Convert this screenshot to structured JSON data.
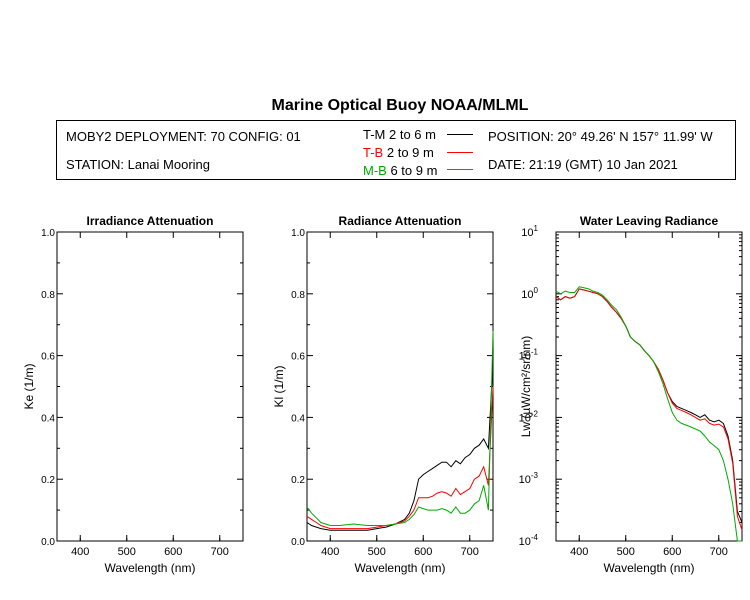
{
  "title": "Marine Optical Buoy NOAA/MLML",
  "info": {
    "deployment": "MOBY2 DEPLOYMENT: 70 CONFIG: 01",
    "station": "STATION: Lanai Mooring",
    "position": "POSITION: 20° 49.26' N   157° 11.99' W",
    "date": "DATE: 21:19 (GMT) 10 Jan 2021",
    "legend": [
      {
        "tag": "T-M",
        "depth": "2 to 6  m",
        "color": "#000000"
      },
      {
        "tag": "T-B",
        "depth": "2 to 9  m",
        "color": "#ff0000"
      },
      {
        "tag": "M-B",
        "depth": "6 to 9  m",
        "color": "#00aa00"
      }
    ]
  },
  "chart_data": [
    {
      "type": "line",
      "title": "Irradiance Attenuation",
      "xlabel": "Wavelength (nm)",
      "ylabel": "Ke  (1/m)",
      "xlim": [
        350,
        750
      ],
      "ylim": [
        0,
        1.0
      ],
      "xticks": [
        "400",
        "500",
        "600",
        "700"
      ],
      "yticks": [
        "0.0",
        "0.2",
        "0.4",
        "0.6",
        "0.8",
        "1.0"
      ],
      "series": []
    },
    {
      "type": "line",
      "title": "Radiance Attenuation",
      "xlabel": "Wavelength (nm)",
      "ylabel": "Kl  (1/m)",
      "xlim": [
        350,
        750
      ],
      "ylim": [
        0,
        1.0
      ],
      "xticks": [
        "400",
        "500",
        "600",
        "700"
      ],
      "yticks": [
        "0.0",
        "0.2",
        "0.4",
        "0.6",
        "0.8",
        "1.0"
      ],
      "series": [
        {
          "color": "#000000",
          "x": [
            350,
            360,
            370,
            380,
            400,
            420,
            450,
            480,
            500,
            520,
            540,
            560,
            570,
            580,
            590,
            600,
            610,
            620,
            630,
            640,
            650,
            660,
            670,
            680,
            690,
            700,
            710,
            720,
            730,
            740,
            750
          ],
          "y": [
            0.06,
            0.05,
            0.045,
            0.04,
            0.035,
            0.035,
            0.035,
            0.035,
            0.04,
            0.045,
            0.055,
            0.07,
            0.09,
            0.13,
            0.2,
            0.215,
            0.225,
            0.235,
            0.245,
            0.255,
            0.255,
            0.24,
            0.26,
            0.25,
            0.27,
            0.28,
            0.3,
            0.31,
            0.33,
            0.3,
            0.58
          ]
        },
        {
          "color": "#ff0000",
          "x": [
            350,
            360,
            370,
            380,
            400,
            420,
            450,
            480,
            500,
            520,
            540,
            560,
            570,
            580,
            590,
            600,
            610,
            620,
            630,
            640,
            650,
            660,
            670,
            680,
            690,
            700,
            710,
            720,
            730,
            740,
            750
          ],
          "y": [
            0.08,
            0.07,
            0.06,
            0.05,
            0.04,
            0.04,
            0.04,
            0.04,
            0.045,
            0.05,
            0.055,
            0.065,
            0.08,
            0.1,
            0.14,
            0.14,
            0.14,
            0.145,
            0.155,
            0.16,
            0.155,
            0.145,
            0.17,
            0.15,
            0.16,
            0.17,
            0.2,
            0.21,
            0.24,
            0.18,
            0.5
          ]
        },
        {
          "color": "#00aa00",
          "x": [
            350,
            360,
            370,
            380,
            400,
            420,
            450,
            480,
            500,
            520,
            540,
            560,
            570,
            580,
            590,
            600,
            610,
            620,
            630,
            640,
            650,
            660,
            670,
            680,
            690,
            700,
            710,
            720,
            730,
            740,
            750
          ],
          "y": [
            0.11,
            0.09,
            0.075,
            0.06,
            0.05,
            0.05,
            0.055,
            0.05,
            0.05,
            0.05,
            0.055,
            0.06,
            0.07,
            0.085,
            0.11,
            0.105,
            0.1,
            0.1,
            0.1,
            0.105,
            0.1,
            0.09,
            0.11,
            0.09,
            0.09,
            0.1,
            0.12,
            0.13,
            0.18,
            0.1,
            0.68
          ]
        }
      ]
    },
    {
      "type": "line",
      "title": "Water Leaving Radiance",
      "xlabel": "Wavelength (nm)",
      "ylabel": "Lw  (µW/cm²/sr/nm)",
      "yscale": "log",
      "xlim": [
        350,
        750
      ],
      "ylim": [
        0.0001,
        10
      ],
      "xticks": [
        "400",
        "500",
        "600",
        "700"
      ],
      "yticks": [
        "10^-4",
        "10^-3",
        "10^-2",
        "10^-1",
        "10^0",
        "10^1"
      ],
      "series": [
        {
          "color": "#000000",
          "x": [
            350,
            360,
            370,
            380,
            390,
            400,
            410,
            420,
            430,
            440,
            450,
            460,
            470,
            480,
            490,
            500,
            510,
            520,
            530,
            540,
            550,
            560,
            570,
            580,
            590,
            600,
            610,
            620,
            630,
            640,
            650,
            660,
            670,
            680,
            690,
            700,
            710,
            720,
            730,
            740,
            750
          ],
          "y": [
            0.9,
            0.8,
            0.9,
            0.85,
            0.9,
            1.2,
            1.15,
            1.1,
            1.05,
            1.0,
            0.9,
            0.75,
            0.6,
            0.5,
            0.4,
            0.3,
            0.2,
            0.17,
            0.15,
            0.12,
            0.1,
            0.08,
            0.06,
            0.04,
            0.025,
            0.018,
            0.015,
            0.014,
            0.013,
            0.012,
            0.011,
            0.01,
            0.011,
            0.009,
            0.0085,
            0.009,
            0.008,
            0.005,
            0.002,
            0.0003,
            0.0002
          ]
        },
        {
          "color": "#ff0000",
          "x": [
            350,
            360,
            370,
            380,
            390,
            400,
            410,
            420,
            430,
            440,
            450,
            460,
            470,
            480,
            490,
            500,
            510,
            520,
            530,
            540,
            550,
            560,
            570,
            580,
            590,
            600,
            610,
            620,
            630,
            640,
            650,
            660,
            670,
            680,
            690,
            700,
            710,
            720,
            730,
            740,
            750
          ],
          "y": [
            0.9,
            0.8,
            0.9,
            0.85,
            0.9,
            1.2,
            1.15,
            1.1,
            1.05,
            1.0,
            0.9,
            0.75,
            0.6,
            0.5,
            0.4,
            0.3,
            0.2,
            0.17,
            0.15,
            0.12,
            0.1,
            0.08,
            0.06,
            0.04,
            0.025,
            0.017,
            0.014,
            0.013,
            0.012,
            0.011,
            0.01,
            0.009,
            0.0095,
            0.008,
            0.0075,
            0.0078,
            0.007,
            0.0045,
            0.0018,
            0.00025,
            0.00015
          ]
        },
        {
          "color": "#00aa00",
          "x": [
            350,
            360,
            370,
            380,
            390,
            400,
            410,
            420,
            430,
            440,
            450,
            460,
            470,
            480,
            490,
            500,
            510,
            520,
            530,
            540,
            550,
            560,
            570,
            580,
            590,
            600,
            610,
            620,
            630,
            640,
            650,
            660,
            670,
            680,
            690,
            700,
            710,
            720,
            730,
            740,
            750
          ],
          "y": [
            1.1,
            1.0,
            1.1,
            1.05,
            1.05,
            1.3,
            1.25,
            1.2,
            1.1,
            1.05,
            0.95,
            0.8,
            0.65,
            0.55,
            0.42,
            0.3,
            0.2,
            0.17,
            0.15,
            0.12,
            0.1,
            0.08,
            0.055,
            0.035,
            0.02,
            0.012,
            0.009,
            0.008,
            0.0075,
            0.007,
            0.0065,
            0.006,
            0.005,
            0.004,
            0.0035,
            0.003,
            0.002,
            0.001,
            0.0004,
            0.0001,
            0.0001
          ]
        }
      ]
    }
  ]
}
